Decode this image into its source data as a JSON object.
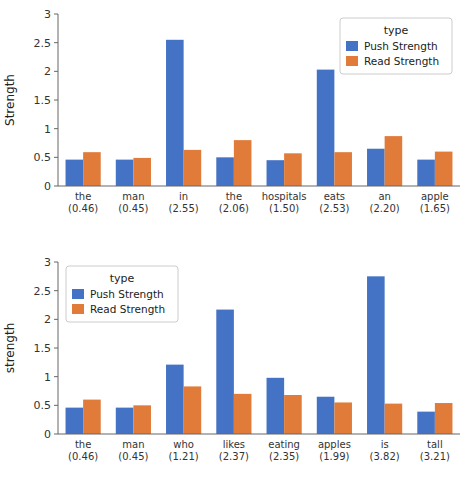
{
  "chart_data": [
    {
      "type": "bar",
      "categories": [
        "the\n(0.46)",
        "man\n(0.45)",
        "in\n(2.55)",
        "the\n(2.06)",
        "hospitals\n(1.50)",
        "eats\n(2.53)",
        "an\n(2.20)",
        "apple\n(1.65)"
      ],
      "series": [
        {
          "name": "Push Strength",
          "color": "#4472C4",
          "values": [
            0.46,
            0.46,
            2.55,
            0.5,
            0.45,
            2.03,
            0.65,
            0.46
          ]
        },
        {
          "name": "Read Strength",
          "color": "#E07B39",
          "values": [
            0.59,
            0.49,
            0.63,
            0.8,
            0.57,
            0.59,
            0.87,
            0.6
          ]
        }
      ],
      "y_label": "Strength",
      "legend_title": "type",
      "legend": "upper right",
      "grid": false,
      "ylim": [
        0,
        3
      ],
      "yticks": [
        0,
        0.5,
        1,
        1.5,
        2,
        2.5,
        3
      ]
    },
    {
      "type": "bar",
      "categories": [
        "the\n(0.46)",
        "man\n(0.45)",
        "who\n(1.21)",
        "likes\n(2.37)",
        "eating\n(2.35)",
        "apples\n(1.99)",
        "is\n(3.82)",
        "tall\n(3.21)"
      ],
      "series": [
        {
          "name": "Push Strength",
          "color": "#4472C4",
          "values": [
            0.46,
            0.46,
            1.21,
            2.17,
            0.98,
            0.65,
            2.75,
            0.39
          ]
        },
        {
          "name": "Read Strength",
          "color": "#E07B39",
          "values": [
            0.6,
            0.5,
            0.83,
            0.7,
            0.68,
            0.55,
            0.53,
            0.54
          ]
        }
      ],
      "y_label": "strength",
      "legend_title": "type",
      "legend": "upper left",
      "grid": false,
      "ylim": [
        0,
        3
      ],
      "yticks": [
        0,
        0.5,
        1,
        1.5,
        2,
        2.5,
        3
      ]
    }
  ]
}
